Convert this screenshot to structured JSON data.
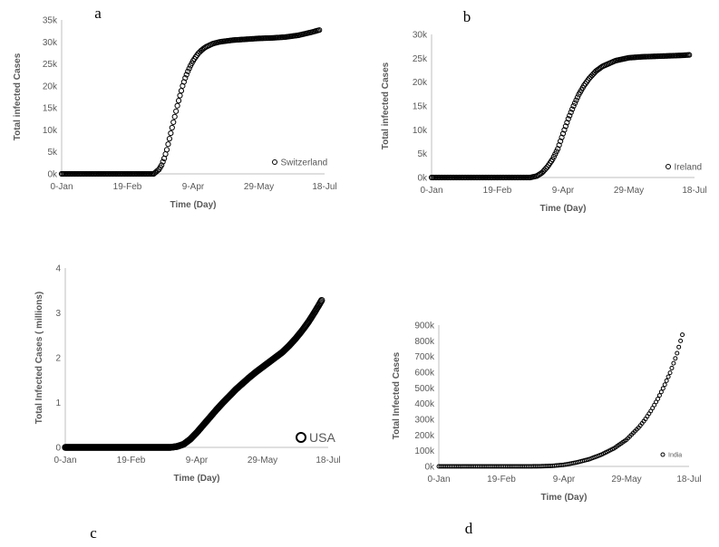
{
  "panel_labels": [
    "a",
    "b",
    "c",
    "d"
  ],
  "colors": {
    "marker": "#000000",
    "axis": "#bfbfbf",
    "text": "#595959"
  },
  "chart_data": [
    {
      "type": "scatter",
      "panel": "a",
      "xlabel": "Time (Day)",
      "ylabel": "Total infected Cases",
      "x_tick_labels": [
        "0-Jan",
        "19-Feb",
        "9-Apr",
        "29-May",
        "18-Jul"
      ],
      "x_ticks": [
        0,
        50,
        100,
        150,
        200
      ],
      "xlim": [
        0,
        200
      ],
      "y_tick_labels": [
        "0k",
        "5k",
        "10k",
        "15k",
        "20k",
        "25k",
        "30k",
        "35k"
      ],
      "ylim": [
        0,
        35000
      ],
      "grid": false,
      "legend_position": "bottom-right",
      "series": [
        {
          "name": "Switzerland",
          "x": [
            0,
            70,
            72,
            74,
            76,
            78,
            80,
            82,
            84,
            86,
            88,
            90,
            92,
            94,
            96,
            98,
            100,
            102,
            104,
            106,
            108,
            110,
            115,
            120,
            130,
            140,
            150,
            160,
            170,
            180,
            190,
            196
          ],
          "y": [
            0,
            0,
            500,
            1000,
            2000,
            3500,
            5500,
            8000,
            10500,
            13000,
            15500,
            17800,
            20000,
            21800,
            23300,
            24600,
            25700,
            26600,
            27400,
            28000,
            28500,
            28900,
            29600,
            30000,
            30400,
            30600,
            30800,
            30900,
            31100,
            31500,
            32200,
            32700
          ]
        }
      ]
    },
    {
      "type": "scatter",
      "panel": "b",
      "xlabel": "Time (Day)",
      "ylabel": "Total infected Cases",
      "x_tick_labels": [
        "0-Jan",
        "19-Feb",
        "9-Apr",
        "29-May",
        "18-Jul"
      ],
      "x_ticks": [
        0,
        50,
        100,
        150,
        200
      ],
      "xlim": [
        0,
        200
      ],
      "y_tick_labels": [
        "0k",
        "5k",
        "10k",
        "15k",
        "20k",
        "25k",
        "30k"
      ],
      "ylim": [
        0,
        30000
      ],
      "grid": false,
      "legend_position": "bottom-right",
      "series": [
        {
          "name": "Ireland",
          "x": [
            0,
            75,
            80,
            84,
            88,
            92,
            96,
            100,
            104,
            108,
            112,
            116,
            120,
            125,
            130,
            140,
            150,
            160,
            170,
            180,
            190,
            196
          ],
          "y": [
            0,
            0,
            300,
            1000,
            2200,
            3800,
            6000,
            9200,
            12300,
            15000,
            17400,
            19300,
            20800,
            22300,
            23300,
            24500,
            25100,
            25300,
            25400,
            25500,
            25600,
            25700
          ]
        }
      ]
    },
    {
      "type": "scatter",
      "panel": "c",
      "xlabel": "Time (Day)",
      "ylabel": "Total Infected Cases ( millions)",
      "x_tick_labels": [
        "0-Jan",
        "19-Feb",
        "9-Apr",
        "29-May",
        "18-Jul"
      ],
      "x_ticks": [
        0,
        50,
        100,
        150,
        200
      ],
      "xlim": [
        0,
        200
      ],
      "y_tick_labels": [
        "0",
        "1",
        "2",
        "3",
        "4"
      ],
      "ylim": [
        0,
        4
      ],
      "grid": false,
      "legend_position": "bottom-right",
      "series": [
        {
          "name": "USA",
          "x": [
            0,
            80,
            85,
            90,
            95,
            100,
            105,
            110,
            115,
            120,
            125,
            130,
            135,
            140,
            145,
            150,
            155,
            160,
            165,
            170,
            175,
            180,
            185,
            190,
            195
          ],
          "y": [
            0,
            0,
            0.02,
            0.07,
            0.18,
            0.33,
            0.5,
            0.67,
            0.84,
            1.0,
            1.15,
            1.3,
            1.43,
            1.56,
            1.68,
            1.79,
            1.9,
            2.01,
            2.12,
            2.26,
            2.42,
            2.6,
            2.8,
            3.03,
            3.28
          ]
        }
      ]
    },
    {
      "type": "scatter",
      "panel": "d",
      "xlabel": "Time (Day)",
      "ylabel": "Total Infected Cases",
      "x_tick_labels": [
        "0-Jan",
        "19-Feb",
        "9-Apr",
        "29-May",
        "18-Jul"
      ],
      "x_ticks": [
        0,
        50,
        100,
        150,
        200
      ],
      "xlim": [
        0,
        200
      ],
      "y_tick_labels": [
        "0k",
        "100k",
        "200k",
        "300k",
        "400k",
        "500k",
        "600k",
        "700k",
        "800k",
        "900k"
      ],
      "ylim": [
        0,
        900000
      ],
      "grid": false,
      "legend_position": "bottom-right",
      "series": [
        {
          "name": "India",
          "x": [
            0,
            60,
            80,
            90,
            100,
            110,
            120,
            130,
            140,
            150,
            160,
            165,
            170,
            175,
            180,
            185,
            190,
            195
          ],
          "y": [
            0,
            0,
            500,
            3000,
            10000,
            25000,
            45000,
            75000,
            115000,
            170000,
            250000,
            300000,
            360000,
            430000,
            510000,
            600000,
            710000,
            850000
          ]
        }
      ]
    }
  ]
}
